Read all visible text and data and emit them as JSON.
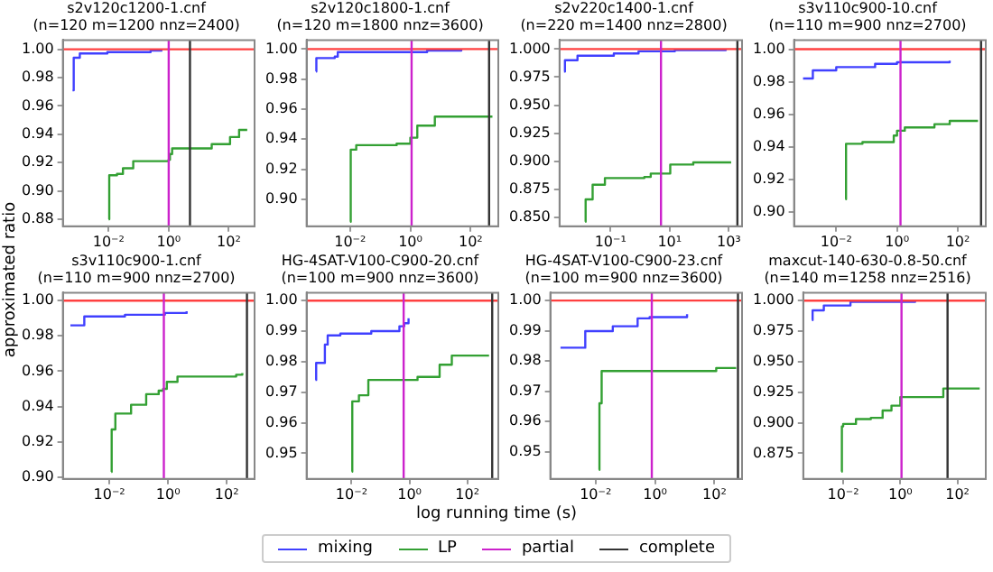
{
  "chart_data": [
    {
      "type": "step",
      "title": "s2v120c1200-1.cnf",
      "subtitle": "(n=120 m=1200 nnz=2400)",
      "ylabel": "approximated ratio",
      "log": "x",
      "grid": false,
      "legend": "bottom",
      "xlim": [
        0.00034,
        720
      ],
      "xticks": [
        {
          "value": 0.01,
          "label": "10⁻²"
        },
        {
          "value": 1,
          "label": "10⁰"
        },
        {
          "value": 100,
          "label": "10²"
        }
      ],
      "ylim": [
        0.875,
        1.0065
      ],
      "yticks": [
        0.88,
        {
          "value": 0.9,
          "label": "0.90"
        },
        0.92,
        0.94,
        0.96,
        0.98,
        {
          "value": 1,
          "label": "1.00"
        }
      ],
      "series": [
        {
          "name": "mixing",
          "color": "#4040ff",
          "x": [
            0.00063,
            0.00069,
            0.0011,
            0.0091,
            0.25,
            0.57
          ],
          "values": [
            0.971,
            0.994,
            0.997,
            0.998,
            0.999,
            1.0
          ]
        },
        {
          "name": "LP",
          "color": "#33a033",
          "x": [
            0.01,
            0.0105,
            0.019,
            0.03,
            0.066,
            1.0,
            1.1,
            1.3,
            27,
            110,
            220,
            410
          ],
          "values": [
            0.88,
            0.911,
            0.912,
            0.916,
            0.921,
            0.922,
            0.926,
            0.93,
            0.933,
            0.938,
            0.943,
            0.943
          ]
        }
      ],
      "ref_lines": [
        {
          "axis": "y",
          "value": 1,
          "color": "#ff4040"
        },
        {
          "axis": "x",
          "value": 1.0,
          "label": "partial",
          "color": "#cc22cc"
        },
        {
          "axis": "x",
          "value": 5.1,
          "label": "complete",
          "color": "#333333"
        }
      ]
    },
    {
      "type": "step",
      "title": "s2v120c1800-1.cnf",
      "subtitle": "(n=120 m=1800 nnz=3600)",
      "log": "x",
      "grid": false,
      "xlim": [
        0.00036,
        830
      ],
      "xticks": [
        {
          "value": 0.01,
          "label": "10⁻²"
        },
        {
          "value": 1,
          "label": "10⁰"
        },
        {
          "value": 100,
          "label": "10²"
        }
      ],
      "ylim": [
        0.882,
        1.006
      ],
      "yticks": [
        {
          "value": 0.9,
          "label": "0.90"
        },
        0.92,
        0.94,
        0.96,
        0.98,
        {
          "value": 1,
          "label": "1.00"
        }
      ],
      "series": [
        {
          "color": "#4040ff",
          "x": [
            0.00074,
            0.00076,
            0.0031,
            0.0039,
            0.21,
            3.6,
            49
          ],
          "values": [
            0.985,
            0.994,
            0.995,
            0.998,
            0.998,
            0.999,
            1.0
          ]
        },
        {
          "color": "#33a033",
          "x": [
            0.01,
            0.0105,
            0.016,
            0.35,
            1.0,
            1.7,
            6.5,
            530
          ],
          "values": [
            0.885,
            0.933,
            0.936,
            0.937,
            0.941,
            0.949,
            0.955,
            0.955
          ]
        }
      ],
      "ref_lines": [
        {
          "axis": "y",
          "value": 1,
          "color": "#ff4040"
        },
        {
          "axis": "x",
          "value": 1.1,
          "color": "#cc22cc"
        },
        {
          "axis": "x",
          "value": 410,
          "color": "#333333"
        }
      ]
    },
    {
      "type": "step",
      "title": "s2v220c1400-1.cnf",
      "subtitle": "(n=220 m=1400 nnz=2800)",
      "log": "x",
      "grid": false,
      "xlim": [
        0.0019,
        2800
      ],
      "xticks": [
        {
          "value": 0.1,
          "label": "10⁻¹"
        },
        {
          "value": 10,
          "label": "10¹"
        },
        {
          "value": 1000,
          "label": "10³"
        }
      ],
      "ylim": [
        0.842,
        1.008
      ],
      "yticks": [
        {
          "value": 0.85,
          "label": "0.850"
        },
        0.875,
        {
          "value": 0.9,
          "label": "0.900"
        },
        0.925,
        {
          "value": 0.95,
          "label": "0.950"
        },
        0.975,
        {
          "value": 1,
          "label": "1.000"
        }
      ],
      "series": [
        {
          "color": "#4040ff",
          "x": [
            0.0027,
            0.0029,
            0.0077,
            0.13,
            0.89,
            15,
            790
          ],
          "values": [
            0.98,
            0.99,
            0.994,
            0.996,
            0.998,
            0.999,
            1.0
          ]
        },
        {
          "color": "#33a033",
          "x": [
            0.014,
            0.0145,
            0.025,
            0.065,
            1.4,
            2.3,
            10.5,
            63,
            1200
          ],
          "values": [
            0.846,
            0.866,
            0.879,
            0.885,
            0.886,
            0.889,
            0.897,
            0.899,
            0.899
          ]
        }
      ],
      "ref_lines": [
        {
          "axis": "y",
          "value": 1,
          "color": "#ff4040"
        },
        {
          "axis": "x",
          "value": 5.1,
          "color": "#cc22cc"
        },
        {
          "axis": "x",
          "value": 1950,
          "color": "#333333"
        }
      ]
    },
    {
      "type": "step",
      "title": "s3v110c900-10.cnf",
      "subtitle": "(n=110 m=900 nnz=2700)",
      "log": "x",
      "grid": false,
      "xlim": [
        0.00041,
        830
      ],
      "xticks": [
        {
          "value": 0.01,
          "label": "10⁻²"
        },
        {
          "value": 1,
          "label": "10⁰"
        },
        {
          "value": 100,
          "label": "10²"
        }
      ],
      "ylim": [
        0.8914,
        1.0056
      ],
      "yticks": [
        {
          "value": 0.9,
          "label": "0.90"
        },
        0.92,
        0.94,
        0.96,
        0.98,
        {
          "value": 1,
          "label": "1.00"
        }
      ],
      "series": [
        {
          "color": "#4040ff",
          "x": [
            0.00081,
            0.0017,
            0.01,
            0.19,
            1.0,
            54
          ],
          "values": [
            0.982,
            0.987,
            0.989,
            0.991,
            0.992,
            0.993
          ]
        },
        {
          "color": "#33a033",
          "x": [
            0.02,
            0.021,
            0.073,
            0.78,
            1.0,
            1.8,
            17,
            54,
            460
          ],
          "values": [
            0.908,
            0.942,
            0.943,
            0.947,
            0.95,
            0.952,
            0.954,
            0.956,
            0.956
          ]
        }
      ],
      "ref_lines": [
        {
          "axis": "y",
          "value": 1,
          "color": "#ff4040"
        },
        {
          "axis": "x",
          "value": 1.3,
          "color": "#cc22cc"
        },
        {
          "axis": "x",
          "value": 580,
          "color": "#333333"
        }
      ]
    },
    {
      "type": "step",
      "title": "s3v110c900-1.cnf",
      "subtitle": "(n=110 m=900 nnz=2700)",
      "log": "x",
      "grid": false,
      "xlim": [
        0.00026,
        890
      ],
      "xticks": [
        {
          "value": 0.01,
          "label": "10⁻²"
        },
        {
          "value": 1,
          "label": "10⁰"
        },
        {
          "value": 100,
          "label": "10²"
        }
      ],
      "ylim": [
        0.899,
        1.0045
      ],
      "yticks": [
        {
          "value": 0.9,
          "label": "0.90"
        },
        0.92,
        0.94,
        0.96,
        0.98,
        {
          "value": 1,
          "label": "1.00"
        }
      ],
      "series": [
        {
          "color": "#4040ff",
          "x": [
            0.00047,
            0.0014,
            0.034,
            0.78,
            4.3
          ],
          "values": [
            0.986,
            0.991,
            0.992,
            0.993,
            0.994
          ]
        },
        {
          "color": "#33a033",
          "x": [
            0.0116,
            0.012,
            0.016,
            0.055,
            0.18,
            0.48,
            0.68,
            0.91,
            2.1,
            210,
            340
          ],
          "values": [
            0.903,
            0.927,
            0.936,
            0.941,
            0.947,
            0.949,
            0.95,
            0.954,
            0.957,
            0.958,
            0.959
          ]
        }
      ],
      "ref_lines": [
        {
          "axis": "y",
          "value": 1,
          "color": "#ff4040"
        },
        {
          "axis": "x",
          "value": 0.72,
          "color": "#cc22cc"
        },
        {
          "axis": "x",
          "value": 490,
          "color": "#333333"
        }
      ]
    },
    {
      "type": "step",
      "xlabel": "log running time (s)",
      "title": "HG-4SAT-V100-C900-20.cnf",
      "subtitle": "(n=100 m=900 nnz=3600)",
      "log": "x",
      "grid": false,
      "xlim": [
        0.00028,
        1170
      ],
      "xticks": [
        {
          "value": 0.01,
          "label": "10⁻²"
        },
        {
          "value": 1,
          "label": "10⁰"
        },
        {
          "value": 100,
          "label": "10²"
        }
      ],
      "ylim": [
        0.9416,
        1.0026
      ],
      "yticks": [
        0.95,
        0.96,
        0.97,
        0.98,
        0.99,
        {
          "value": 1,
          "label": "1.00"
        }
      ],
      "series": [
        {
          "color": "#4040ff",
          "x": [
            0.00057,
            0.0006,
            0.0012,
            0.0015,
            0.0041,
            0.048,
            0.45,
            0.66,
            0.93
          ],
          "values": [
            0.974,
            0.9796,
            0.9856,
            0.9886,
            0.9892,
            0.99,
            0.9916,
            0.9926,
            0.9942
          ]
        },
        {
          "color": "#33a033",
          "x": [
            0.0102,
            0.0106,
            0.018,
            0.038,
            1.9,
            11,
            29,
            560
          ],
          "values": [
            0.944,
            0.967,
            0.969,
            0.974,
            0.975,
            0.979,
            0.982,
            0.982
          ]
        }
      ],
      "ref_lines": [
        {
          "axis": "y",
          "value": 1,
          "color": "#ff4040"
        },
        {
          "axis": "x",
          "value": 0.63,
          "color": "#cc22cc"
        },
        {
          "axis": "x",
          "value": 720,
          "color": "#333333"
        }
      ]
    },
    {
      "type": "step",
      "title": "HG-4SAT-V100-C900-23.cnf",
      "subtitle": "(n=100 m=900 nnz=3600)",
      "log": "x",
      "grid": false,
      "xlim": [
        0.00032,
        850
      ],
      "xticks": [
        {
          "value": 0.01,
          "label": "10⁻²"
        },
        {
          "value": 1,
          "label": "10⁰"
        },
        {
          "value": 100,
          "label": "10²"
        }
      ],
      "ylim": [
        0.941,
        1.0026
      ],
      "yticks": [
        0.95,
        0.96,
        0.97,
        0.98,
        0.99,
        {
          "value": 1,
          "label": "1.00"
        }
      ],
      "series": [
        {
          "color": "#4040ff",
          "x": [
            0.00066,
            0.0045,
            0.038,
            0.26,
            0.66,
            12
          ],
          "values": [
            0.9844,
            0.9899,
            0.9915,
            0.9941,
            0.9945,
            0.9955
          ]
        },
        {
          "color": "#33a033",
          "x": [
            0.013,
            0.0135,
            0.016,
            115,
            540
          ],
          "values": [
            0.944,
            0.966,
            0.9767,
            0.9777,
            0.9777
          ]
        }
      ],
      "ref_lines": [
        {
          "axis": "y",
          "value": 1,
          "color": "#ff4040"
        },
        {
          "axis": "x",
          "value": 0.78,
          "color": "#cc22cc"
        },
        {
          "axis": "x",
          "value": 620,
          "color": "#333333"
        }
      ]
    },
    {
      "type": "step",
      "title": "maxcut-140-630-0.8-50.cnf",
      "subtitle": "(n=140 m=1258 nnz=2516)",
      "log": "x",
      "grid": false,
      "xlim": [
        0.0004,
        980
      ],
      "xticks": [
        {
          "value": 0.01,
          "label": "10⁻²"
        },
        {
          "value": 1,
          "label": "10⁰"
        },
        {
          "value": 100,
          "label": "10²"
        }
      ],
      "ylim": [
        0.854,
        1.0065
      ],
      "yticks": [
        0.875,
        {
          "value": 0.9,
          "label": "0.900"
        },
        0.925,
        {
          "value": 0.95,
          "label": "0.950"
        },
        0.975,
        {
          "value": 1,
          "label": "1.000"
        }
      ],
      "series": [
        {
          "color": "#4040ff",
          "x": [
            0.00081,
            0.00085,
            0.0021,
            0.0102,
            0.018,
            3.3
          ],
          "values": [
            0.984,
            0.992,
            0.996,
            0.996,
            0.999,
            1.0
          ]
        },
        {
          "color": "#33a033",
          "x": [
            0.0087,
            0.009,
            0.01,
            0.028,
            0.093,
            0.24,
            0.49,
            1.0,
            32,
            600
          ],
          "values": [
            0.86,
            0.897,
            0.899,
            0.903,
            0.904,
            0.91,
            0.914,
            0.921,
            0.928,
            0.928
          ]
        }
      ],
      "ref_lines": [
        {
          "axis": "y",
          "value": 1,
          "color": "#ff4040"
        },
        {
          "axis": "x",
          "value": 1.1,
          "color": "#cc22cc"
        },
        {
          "axis": "x",
          "value": 45,
          "color": "#333333"
        }
      ]
    }
  ]
}
